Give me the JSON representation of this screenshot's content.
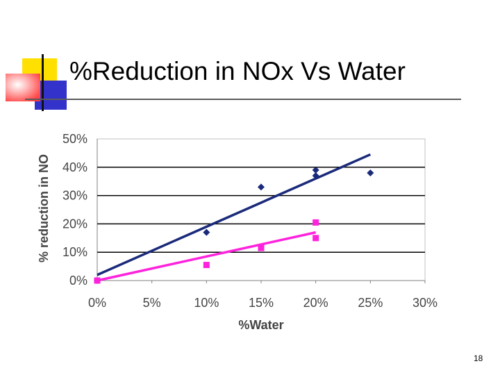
{
  "slide": {
    "title": "%Reduction in NOx Vs Water",
    "page_number": "18"
  },
  "colors": {
    "series_1": "#1a2a7a",
    "series_2": "#ff22dd",
    "gridline": "#000000",
    "deco_yellow": "#ffe000",
    "deco_blue": "#3333cc",
    "deco_red": "#ff4040"
  },
  "chart_data": {
    "type": "scatter",
    "title": "",
    "xlabel": "%Water",
    "ylabel": "% reduction in NO",
    "xlim": [
      0,
      0.3
    ],
    "ylim": [
      0,
      0.5
    ],
    "x_ticks": [
      0,
      0.05,
      0.1,
      0.15,
      0.2,
      0.25,
      0.3
    ],
    "x_tick_labels": [
      "0%",
      "5%",
      "10%",
      "15%",
      "20%",
      "25%",
      "30%"
    ],
    "y_ticks": [
      0,
      0.1,
      0.2,
      0.3,
      0.4,
      0.5
    ],
    "y_tick_labels": [
      "0%",
      "10%",
      "20%",
      "30%",
      "40%",
      "50%"
    ],
    "grid": "horizontal",
    "legend": "none",
    "series": [
      {
        "marker": "diamond",
        "color": "#1a2a7a",
        "points": [
          {
            "x": 0.0,
            "y": 0.0
          },
          {
            "x": 0.1,
            "y": 0.17
          },
          {
            "x": 0.15,
            "y": 0.33
          },
          {
            "x": 0.2,
            "y": 0.37
          },
          {
            "x": 0.2,
            "y": 0.39
          },
          {
            "x": 0.25,
            "y": 0.38
          }
        ],
        "trendline": {
          "x": [
            0.0,
            0.25
          ],
          "y": [
            0.02,
            0.445
          ]
        }
      },
      {
        "marker": "square",
        "color": "#ff22dd",
        "points": [
          {
            "x": 0.0,
            "y": 0.0
          },
          {
            "x": 0.1,
            "y": 0.055
          },
          {
            "x": 0.15,
            "y": 0.115
          },
          {
            "x": 0.2,
            "y": 0.15
          },
          {
            "x": 0.2,
            "y": 0.205
          }
        ],
        "trendline": {
          "x": [
            0.0,
            0.2
          ],
          "y": [
            0.0,
            0.17
          ]
        }
      }
    ]
  }
}
